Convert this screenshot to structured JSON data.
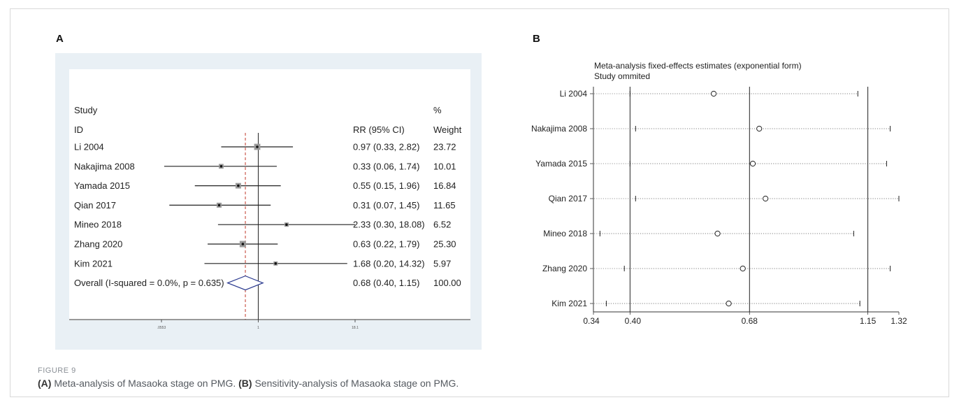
{
  "figure": {
    "label": "FIGURE 9",
    "caption_a_letter": "(A)",
    "caption_a_text": " Meta-analysis of Masaoka stage on PMG. ",
    "caption_b_letter": "(B)",
    "caption_b_text": " Sensitivity-analysis of Masaoka stage on PMG."
  },
  "chart_data": [
    {
      "panel": "A",
      "type": "scatter",
      "subtype": "forest-plot",
      "headers": {
        "study_line1": "Study",
        "study_line2": "ID",
        "rr_header": "RR (95% CI)",
        "weight_line1": "%",
        "weight_line2": "Weight"
      },
      "studies": [
        {
          "id": "Li 2004",
          "rr": 0.97,
          "lo": 0.33,
          "hi": 2.82,
          "ci_text": "0.97 (0.33, 2.82)",
          "weight": "23.72"
        },
        {
          "id": "Nakajima 2008",
          "rr": 0.33,
          "lo": 0.06,
          "hi": 1.74,
          "ci_text": "0.33 (0.06, 1.74)",
          "weight": "10.01"
        },
        {
          "id": "Yamada 2015",
          "rr": 0.55,
          "lo": 0.15,
          "hi": 1.96,
          "ci_text": "0.55 (0.15, 1.96)",
          "weight": "16.84"
        },
        {
          "id": "Qian 2017",
          "rr": 0.31,
          "lo": 0.07,
          "hi": 1.45,
          "ci_text": "0.31 (0.07, 1.45)",
          "weight": "11.65"
        },
        {
          "id": "Mineo 2018",
          "rr": 2.33,
          "lo": 0.3,
          "hi": 18.08,
          "ci_text": "2.33 (0.30, 18.08)",
          "weight": "6.52"
        },
        {
          "id": "Zhang 2020",
          "rr": 0.63,
          "lo": 0.22,
          "hi": 1.79,
          "ci_text": "0.63 (0.22, 1.79)",
          "weight": "25.30"
        },
        {
          "id": "Kim 2021",
          "rr": 1.68,
          "lo": 0.2,
          "hi": 14.32,
          "ci_text": "1.68 (0.20, 14.32)",
          "weight": "5.97"
        }
      ],
      "overall": {
        "label": "Overall  (I-squared = 0.0%, p = 0.635)",
        "rr": 0.68,
        "lo": 0.4,
        "hi": 1.15,
        "ci_text": "0.68 (0.40, 1.15)",
        "weight": "100.00"
      },
      "x_scale": "log",
      "xlim": [
        0.0553,
        18.1
      ],
      "x_ticks": [
        0.0553,
        1,
        18.1
      ],
      "x_tick_labels": [
        ".0553",
        "1",
        "18.1"
      ],
      "null_line": 1,
      "colors": {
        "marker_box": "#9a9a9a",
        "diamond": "#2b3a8f",
        "overall_line": "#c0392b",
        "panel_bg": "#e9f0f5"
      }
    },
    {
      "panel": "B",
      "type": "scatter",
      "subtype": "sensitivity-plot",
      "title_line1": "Meta-analysis fixed-effects estimates (exponential form)",
      "title_line2": "Study ommited",
      "studies": [
        {
          "id": "Li 2004",
          "estimate": 0.58,
          "lo": 0.4,
          "hi": 1.1
        },
        {
          "id": "Nakajima 2008",
          "estimate": 0.71,
          "lo": 0.41,
          "hi": 1.27
        },
        {
          "id": "Yamada 2015",
          "estimate": 0.69,
          "lo": 0.4,
          "hi": 1.25
        },
        {
          "id": "Qian 2017",
          "estimate": 0.73,
          "lo": 0.41,
          "hi": 1.32
        },
        {
          "id": "Mineo 2018",
          "estimate": 0.59,
          "lo": 0.35,
          "hi": 1.08
        },
        {
          "id": "Zhang 2020",
          "estimate": 0.66,
          "lo": 0.39,
          "hi": 1.27
        },
        {
          "id": "Kim 2021",
          "estimate": 0.62,
          "lo": 0.36,
          "hi": 1.11
        }
      ],
      "x_scale": "log",
      "xlim": [
        0.34,
        1.32
      ],
      "x_ticks": [
        0.34,
        0.4,
        0.68,
        1.15,
        1.32
      ],
      "x_tick_labels": [
        "0.34",
        "0.40",
        "0.68",
        "1.15",
        "1.32"
      ],
      "reference_lines": [
        0.4,
        0.68,
        1.15
      ]
    }
  ]
}
